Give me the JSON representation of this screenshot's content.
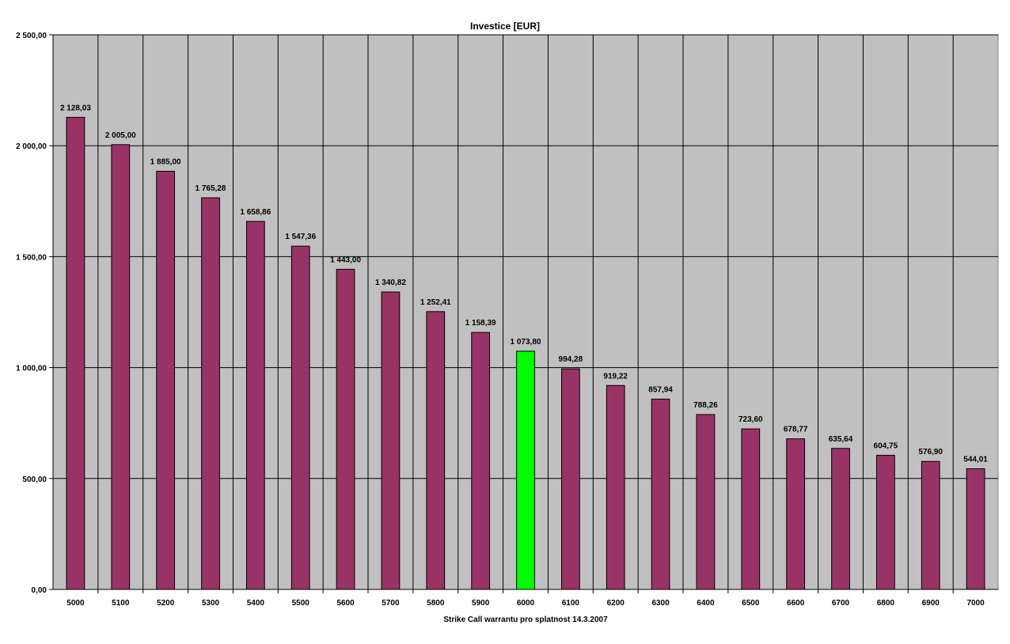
{
  "chart_data": {
    "type": "bar",
    "title": "Investice [EUR]",
    "xlabel": "Strike Call warrantu pro splatnost 14.3.2007",
    "ylabel": "",
    "ylim": [
      0,
      2500
    ],
    "yticks": [
      0,
      500,
      1000,
      1500,
      2000,
      2500
    ],
    "ytick_labels": [
      "0,00",
      "500,00",
      "1 000,00",
      "1 500,00",
      "2 000,00",
      "2 500,00"
    ],
    "grid": true,
    "legend": "none",
    "categories": [
      "5000",
      "5100",
      "5200",
      "5300",
      "5400",
      "5500",
      "5600",
      "5700",
      "5800",
      "5900",
      "6000",
      "6100",
      "6200",
      "6300",
      "6400",
      "6500",
      "6600",
      "6700",
      "6800",
      "6900",
      "7000"
    ],
    "values": [
      2128.03,
      2005.0,
      1885.0,
      1765.28,
      1658.86,
      1547.36,
      1443.0,
      1340.82,
      1252.41,
      1158.39,
      1073.8,
      994.28,
      919.22,
      857.94,
      788.26,
      723.6,
      678.77,
      635.64,
      604.75,
      576.9,
      544.01
    ],
    "data_labels": [
      "2 128,03",
      "2 005,00",
      "1 885,00",
      "1 765,28",
      "1 658,86",
      "1 547,36",
      "1 443,00",
      "1 340,82",
      "1 252,41",
      "1 158,39",
      "1 073,80",
      "994,28",
      "919,22",
      "857,94",
      "788,26",
      "723,60",
      "678,77",
      "635,64",
      "604,75",
      "576,90",
      "544,01"
    ],
    "highlight_category": "6000",
    "colors": {
      "bar": "#993366",
      "highlight_bar": "#00ff00",
      "plot_background": "#c0c0c0",
      "gridline": "#000000"
    }
  }
}
